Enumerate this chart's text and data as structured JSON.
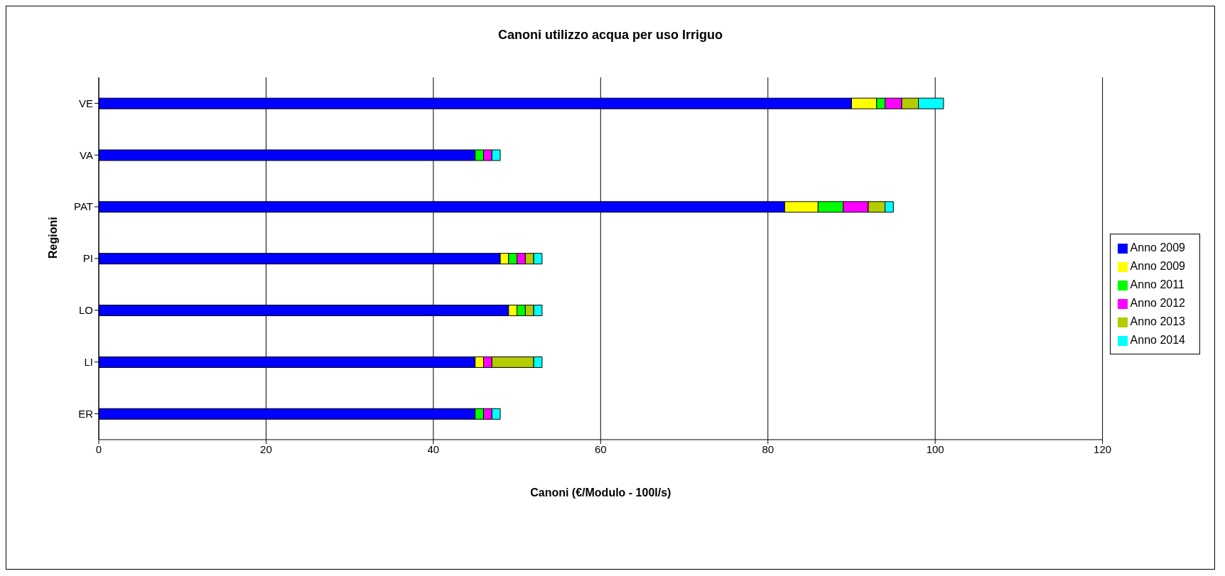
{
  "chart_data": {
    "type": "bar",
    "orientation": "horizontal",
    "stacked": true,
    "title": "Canoni utilizzo acqua per uso Irriguo",
    "xlabel": "Canoni (€/Modulo - 100l/s)",
    "ylabel": "Regioni",
    "categories": [
      "VE",
      "VA",
      "PAT",
      "PI",
      "LO",
      "LI",
      "ER"
    ],
    "series": [
      {
        "name": "Anno 2009",
        "color": "#0000ff",
        "values": [
          90,
          45,
          82,
          48,
          49,
          45,
          45
        ]
      },
      {
        "name": "Anno 2009",
        "color": "#ffff00",
        "values": [
          3,
          0,
          4,
          1,
          1,
          1,
          0
        ]
      },
      {
        "name": "Anno 2011",
        "color": "#00ff00",
        "values": [
          1,
          1,
          3,
          1,
          1,
          0,
          1
        ]
      },
      {
        "name": "Anno 2012",
        "color": "#ff00ff",
        "values": [
          2,
          1,
          3,
          1,
          0,
          1,
          1
        ]
      },
      {
        "name": "Anno 2013",
        "color": "#b3cc00",
        "values": [
          2,
          0,
          2,
          1,
          1,
          5,
          0
        ]
      },
      {
        "name": "Anno 2014",
        "color": "#00ffff",
        "values": [
          3,
          1,
          1,
          1,
          1,
          1,
          1
        ]
      }
    ],
    "xlim": [
      0,
      120
    ],
    "xticks": [
      0,
      20,
      40,
      60,
      80,
      100,
      120
    ],
    "grid": "x",
    "legend": "right"
  }
}
